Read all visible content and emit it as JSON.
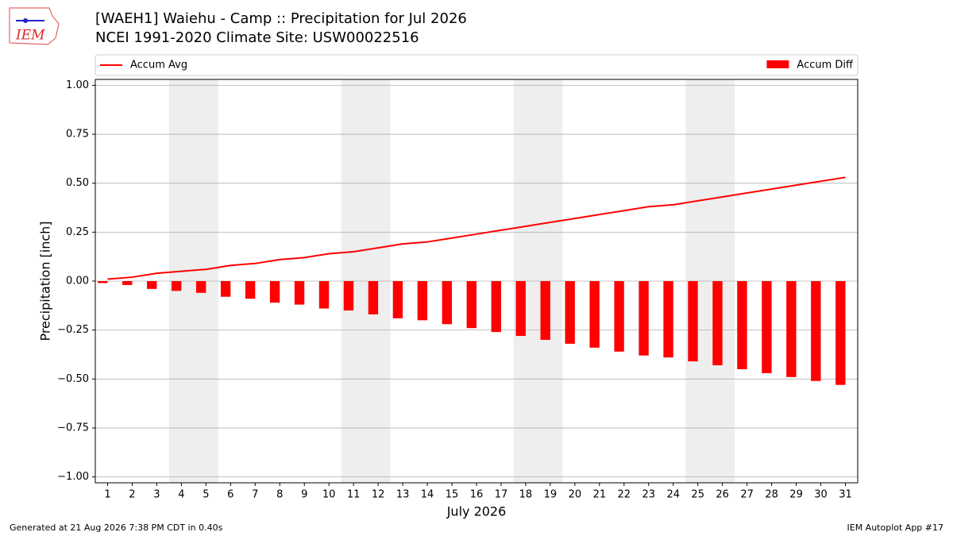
{
  "logo_text": "IEM",
  "footer": {
    "left": "Generated at 21 Aug 2026 7:38 PM CDT in 0.40s",
    "right": "IEM Autoplot App #17"
  },
  "chart_data": {
    "type": "combo",
    "title": "[WAEH1] Waiehu - Camp :: Precipitation for Jul 2026",
    "subtitle": "NCEI 1991-2020 Climate Site: USW00022516",
    "ylabel": "Precipitation [inch]",
    "xlabel": "July 2026",
    "x": [
      1,
      2,
      3,
      4,
      5,
      6,
      7,
      8,
      9,
      10,
      11,
      12,
      13,
      14,
      15,
      16,
      17,
      18,
      19,
      20,
      21,
      22,
      23,
      24,
      25,
      26,
      27,
      28,
      29,
      30,
      31
    ],
    "xlim": [
      0.5,
      31.5
    ],
    "xticks": [
      1,
      2,
      3,
      4,
      5,
      6,
      7,
      8,
      9,
      10,
      11,
      12,
      13,
      14,
      15,
      16,
      17,
      18,
      19,
      20,
      21,
      22,
      23,
      24,
      25,
      26,
      27,
      28,
      29,
      30,
      31
    ],
    "ylim": [
      -1.03,
      1.03
    ],
    "yticks": [
      {
        "value": 1,
        "label": "1.00"
      },
      {
        "value": 0.75,
        "label": "0.75"
      },
      {
        "value": 0.5,
        "label": "0.50"
      },
      {
        "value": 0.25,
        "label": "0.25"
      },
      {
        "value": 0,
        "label": "0.00"
      },
      {
        "value": -0.25,
        "label": "−0.25"
      },
      {
        "value": -0.5,
        "label": "−0.50"
      },
      {
        "value": -0.75,
        "label": "−0.75"
      },
      {
        "value": -1,
        "label": "−1.00"
      }
    ],
    "grid": true,
    "weekend_bands": [
      [
        4,
        5
      ],
      [
        11,
        12
      ],
      [
        18,
        19
      ],
      [
        25,
        26
      ]
    ],
    "series": [
      {
        "name": "Accum Avg",
        "type": "line",
        "color": "#ff0000",
        "values": [
          0.01,
          0.02,
          0.04,
          0.05,
          0.06,
          0.08,
          0.09,
          0.11,
          0.12,
          0.14,
          0.15,
          0.17,
          0.19,
          0.2,
          0.22,
          0.24,
          0.26,
          0.28,
          0.3,
          0.32,
          0.34,
          0.36,
          0.38,
          0.39,
          0.41,
          0.43,
          0.45,
          0.47,
          0.49,
          0.51,
          0.53
        ]
      },
      {
        "name": "Accum Diff",
        "type": "bar",
        "color": "#ff0000",
        "values": [
          -0.01,
          -0.02,
          -0.04,
          -0.05,
          -0.06,
          -0.08,
          -0.09,
          -0.11,
          -0.12,
          -0.14,
          -0.15,
          -0.17,
          -0.19,
          -0.2,
          -0.22,
          -0.24,
          -0.26,
          -0.28,
          -0.3,
          -0.32,
          -0.34,
          -0.36,
          -0.38,
          -0.39,
          -0.41,
          -0.43,
          -0.45,
          -0.47,
          -0.49,
          -0.51,
          -0.53
        ]
      }
    ]
  }
}
